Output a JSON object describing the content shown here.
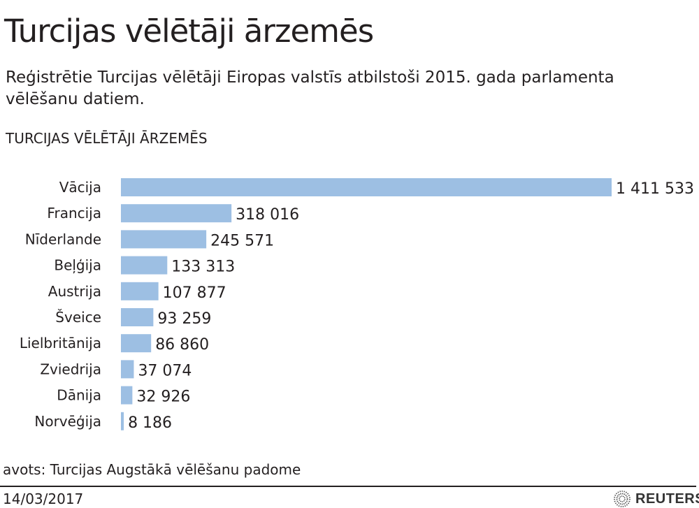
{
  "header": {
    "title": "Turcijas vēlētāji ārzemēs",
    "subtitle": "Reģistrētie Turcijas vēlētāji Eiropas valstīs atbilstoši 2015. gada parlamenta vēlēšanu datiem."
  },
  "chart_data": {
    "type": "bar",
    "orientation": "horizontal",
    "title": "TURCIJAS VĒLĒTĀJI ĀRZEMĒS",
    "categories": [
      "Vācija",
      "Francija",
      "Nīderlande",
      "Beļģija",
      "Austrija",
      "Šveice",
      "Lielbritānija",
      "Zviedrija",
      "Dānija",
      "Norvēģija"
    ],
    "values": [
      1411533,
      318016,
      245571,
      133313,
      107877,
      93259,
      86860,
      37074,
      32926,
      8186
    ],
    "value_labels": [
      "1 411 533",
      "318 016",
      "245 571",
      "133 313",
      "107 877",
      "93 259",
      "86 860",
      "37 074",
      "32 926",
      "8 186"
    ],
    "bar_color": "#9dbfe3",
    "xlim": [
      0,
      1411533
    ],
    "xlabel": "",
    "ylabel": "",
    "grid": false
  },
  "footer": {
    "source": "avots: Turcijas Augstākā vēlēšanu padome",
    "date": "14/03/2017",
    "logo": "REUTERS"
  }
}
